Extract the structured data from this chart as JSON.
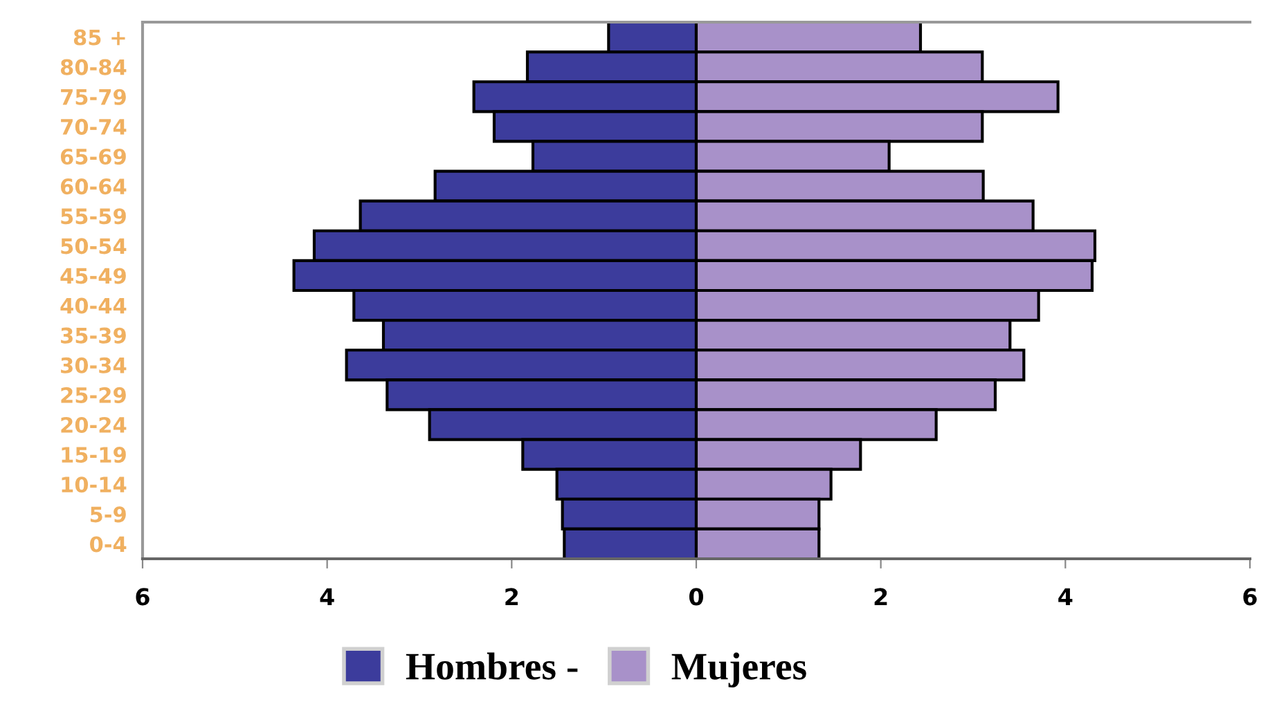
{
  "chart_data": {
    "type": "bar",
    "orientation": "horizontal",
    "stacked": true,
    "categories": [
      "85 +",
      "80-84",
      "75-79",
      "70-74",
      "65-69",
      "60-64",
      "55-59",
      "50-54",
      "45-49",
      "40-44",
      "35-39",
      "30-34",
      "25-29",
      "20-24",
      "15-19",
      "10-14",
      "5-9",
      "0-4"
    ],
    "series": [
      {
        "name": "Hombres -",
        "color": "#3c3c9c",
        "values": [
          -0.95,
          -1.83,
          -2.41,
          -2.19,
          -1.77,
          -2.83,
          -3.64,
          -4.14,
          -4.36,
          -3.71,
          -3.39,
          -3.79,
          -3.35,
          -2.89,
          -1.88,
          -1.51,
          -1.45,
          -1.43
        ]
      },
      {
        "name": "Mujeres",
        "color": "#a891c9",
        "values": [
          2.43,
          3.1,
          3.92,
          3.1,
          2.09,
          3.11,
          3.65,
          4.32,
          4.29,
          3.71,
          3.4,
          3.55,
          3.24,
          2.6,
          1.78,
          1.46,
          1.33,
          1.33
        ]
      }
    ],
    "xlim": [
      -6,
      6
    ],
    "xticks": [
      {
        "value": -6,
        "label": "6"
      },
      {
        "value": -4,
        "label": "4"
      },
      {
        "value": -2,
        "label": "2"
      },
      0,
      2,
      4,
      6
    ],
    "grid": false,
    "legend": "bottom"
  }
}
